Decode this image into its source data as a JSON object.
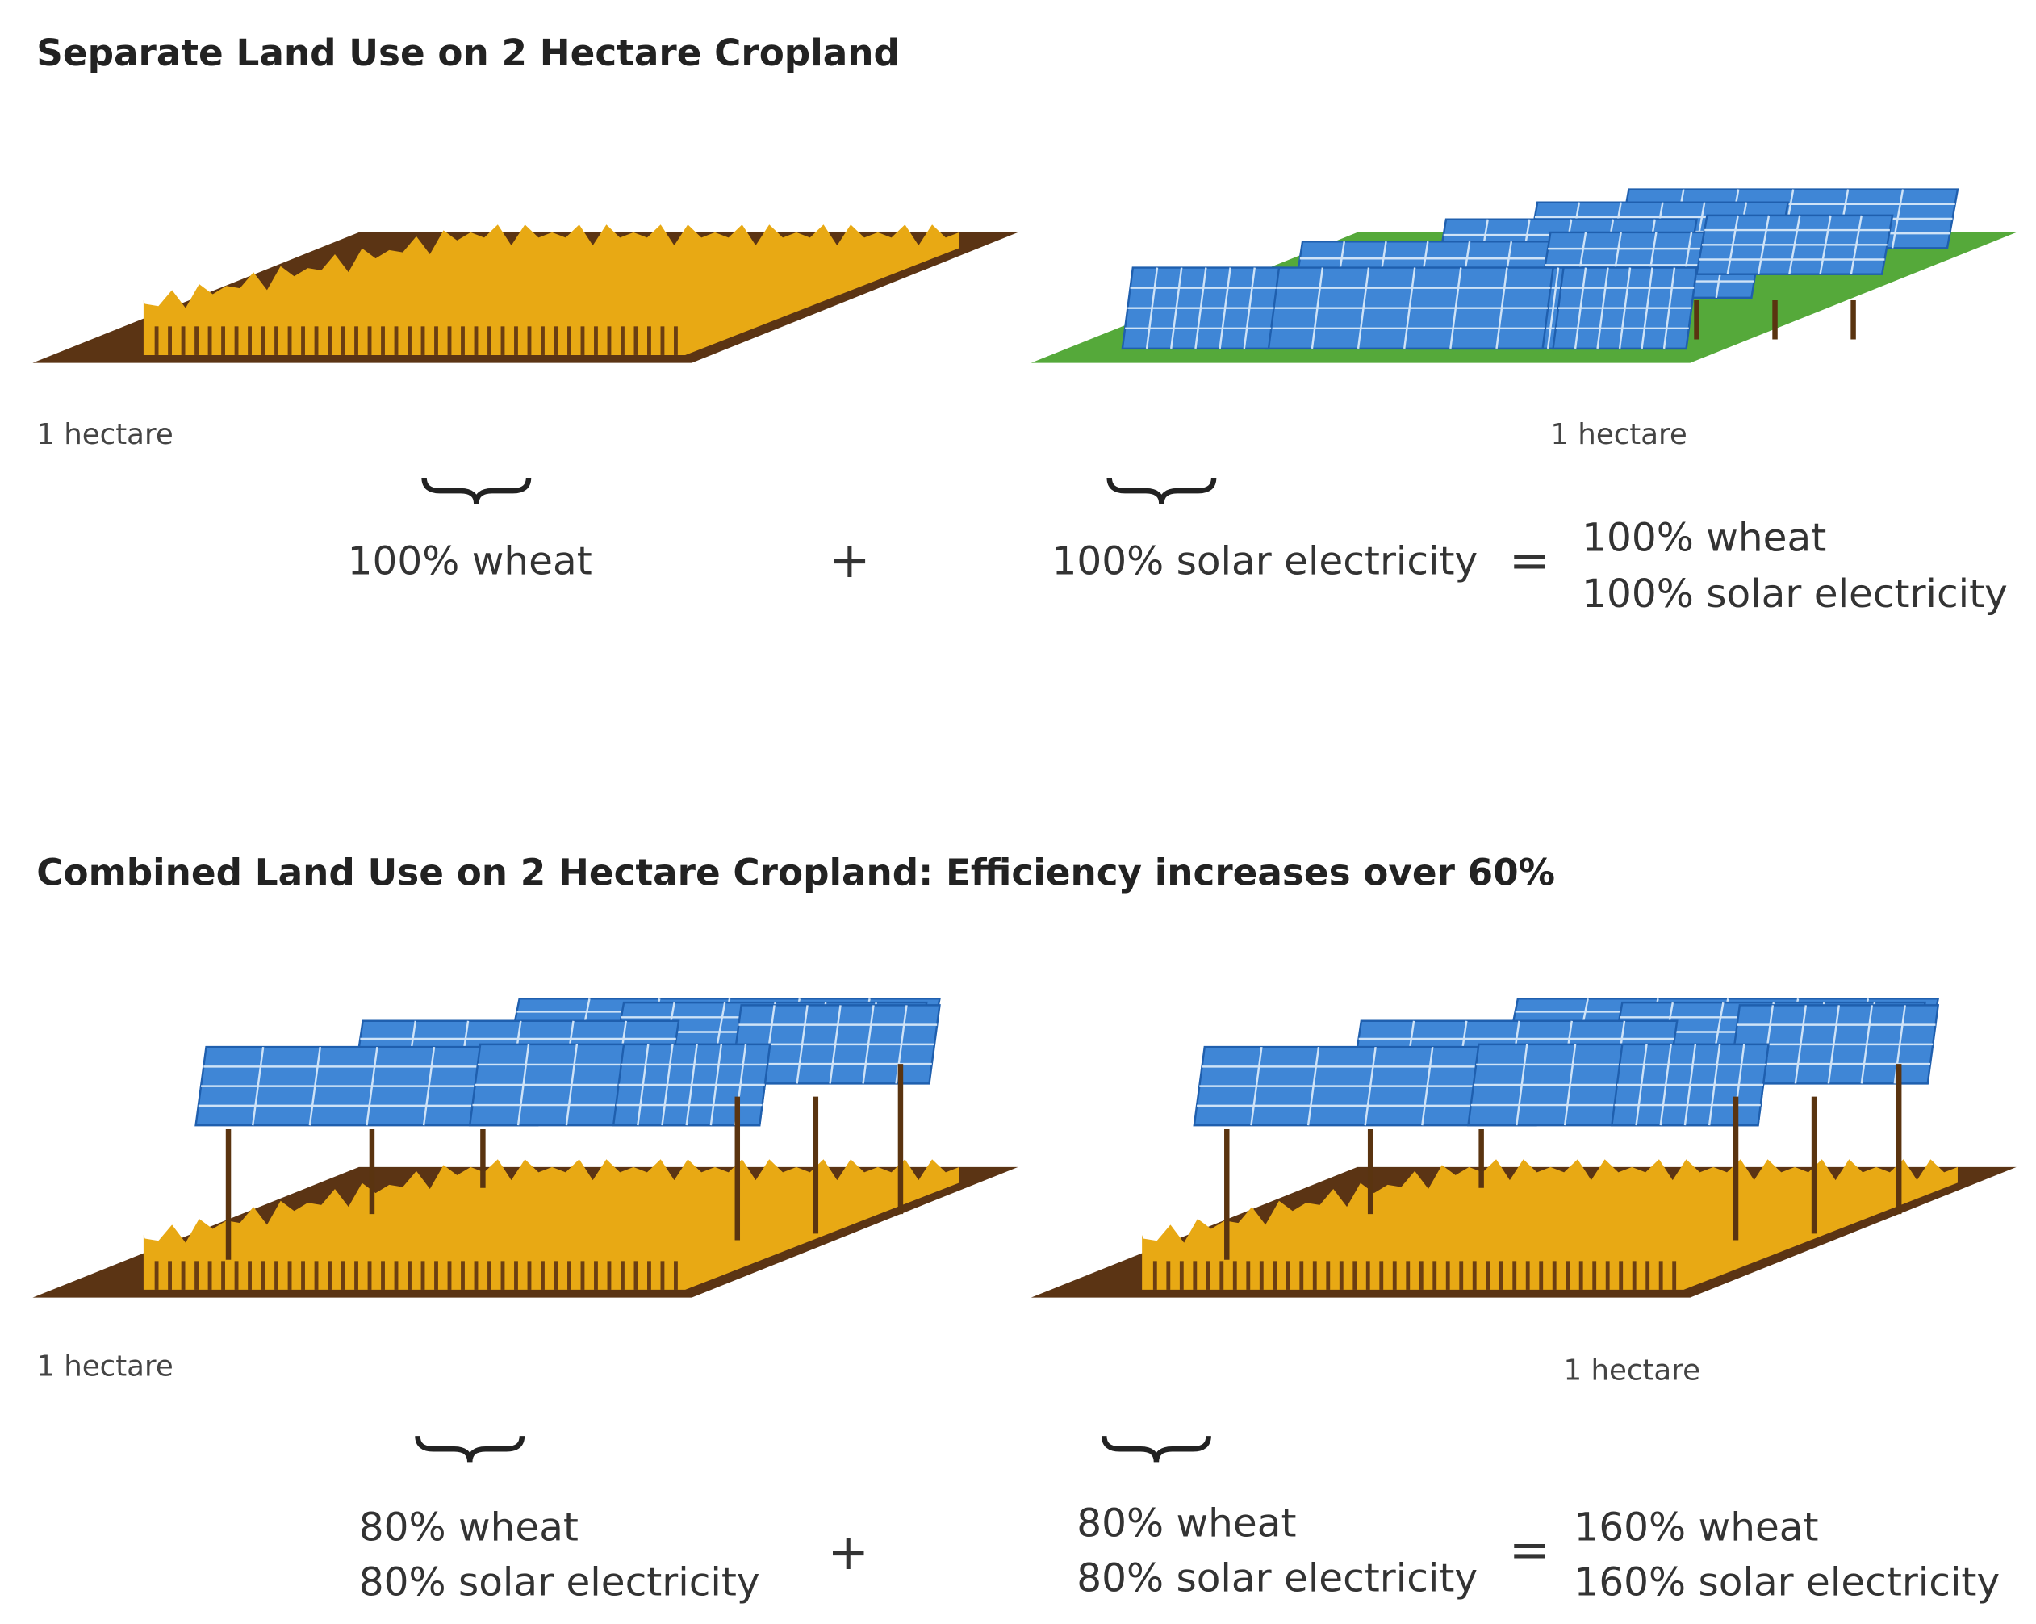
{
  "sections": [
    {
      "title": "Separate Land Use on 2 Hectare Cropland",
      "left": {
        "area_label": "1 hectare",
        "lines": [
          "100% wheat"
        ]
      },
      "operator": "+",
      "right": {
        "area_label": "1 hectare",
        "lines": [
          "100% solar electricity"
        ]
      },
      "equals": "=",
      "result": {
        "lines": [
          "100% wheat",
          "100% solar electricity"
        ]
      }
    },
    {
      "title": "Combined Land Use on 2 Hectare Cropland: Efficiency increases over 60%",
      "left": {
        "area_label": "1 hectare",
        "lines": [
          "80% wheat",
          "80% solar electricity"
        ]
      },
      "operator": "+",
      "right": {
        "area_label": "1 hectare",
        "lines": [
          "80% wheat",
          "80% solar electricity"
        ]
      },
      "equals": "=",
      "result": {
        "lines": [
          "160% wheat",
          "160% solar electricity"
        ]
      }
    }
  ]
}
